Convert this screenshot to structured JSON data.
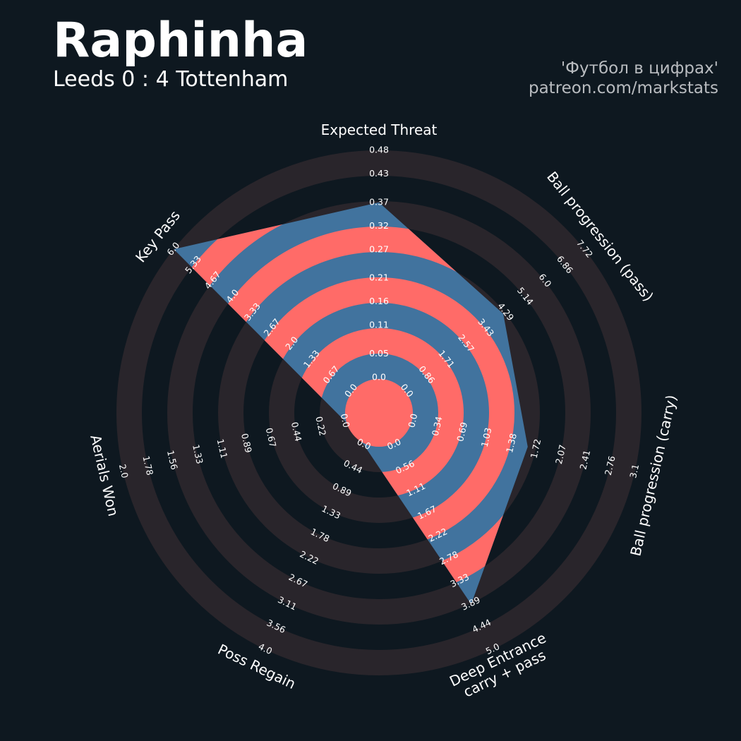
{
  "chart_data": {
    "type": "radar",
    "title": "Raphinha",
    "subtitle": "Leeds 0 : 4 Tottenham",
    "credits": [
      "'Футбол в цифрах'",
      "patreon.com/markstats"
    ],
    "colors": {
      "background": "#0e1820",
      "rings": "#29252b",
      "series": "#41739e",
      "alternate": "#ff6b68"
    },
    "axes": [
      {
        "label": [
          "Expected Threat"
        ],
        "lim": [
          0,
          0.48
        ],
        "ticks": [
          {
            "value": 0,
            "label": "0.0"
          },
          0.05,
          0.11,
          0.16,
          0.21,
          0.27,
          0.32,
          0.37,
          0.43,
          0.48
        ]
      },
      {
        "label": [
          "Ball progression (pass)"
        ],
        "lim": [
          0,
          7.72
        ],
        "ticks": [
          {
            "value": 0,
            "label": "0.0"
          },
          0.86,
          1.71,
          2.57,
          3.43,
          4.29,
          5.14,
          {
            "value": 6,
            "label": "6.0"
          },
          6.86,
          7.72
        ]
      },
      {
        "label": [
          "Ball progression (carry)"
        ],
        "lim": [
          0,
          3.1
        ],
        "ticks": [
          {
            "value": 0,
            "label": "0.0"
          },
          0.34,
          0.69,
          1.03,
          1.38,
          1.72,
          2.07,
          2.41,
          2.76,
          3.1
        ]
      },
      {
        "label": [
          "Deep Entrance",
          "carry + pass"
        ],
        "lim": [
          0,
          5
        ],
        "ticks": [
          {
            "value": 0,
            "label": "0.0"
          },
          0.56,
          1.11,
          1.67,
          2.22,
          2.78,
          3.33,
          3.89,
          4.44,
          {
            "value": 5,
            "label": "5.0"
          }
        ]
      },
      {
        "label": [
          "Poss Regain"
        ],
        "lim": [
          0,
          4
        ],
        "ticks": [
          {
            "value": 0,
            "label": "0.0"
          },
          0.44,
          0.89,
          1.33,
          1.78,
          2.22,
          2.67,
          3.11,
          3.56,
          {
            "value": 4,
            "label": "4.0"
          }
        ]
      },
      {
        "label": [
          "Aerials Won"
        ],
        "lim": [
          0,
          2
        ],
        "ticks": [
          {
            "value": 0,
            "label": "0.0"
          },
          0.22,
          0.44,
          0.67,
          0.89,
          1.11,
          1.33,
          1.56,
          1.78,
          {
            "value": 2,
            "label": "2.0"
          }
        ]
      },
      {
        "label": [
          "Key Pass"
        ],
        "lim": [
          0,
          6
        ],
        "ticks": [
          {
            "value": 0,
            "label": "0.0"
          },
          0.67,
          1.33,
          {
            "value": 2,
            "label": "2.0"
          },
          2.67,
          3.33,
          {
            "value": 4,
            "label": "4.0"
          },
          4.67,
          5.33,
          {
            "value": 6,
            "label": "6.0"
          }
        ]
      }
    ],
    "values": [
      0.37,
      4.2,
      1.6,
      3.9,
      0,
      0,
      6.0
    ]
  }
}
